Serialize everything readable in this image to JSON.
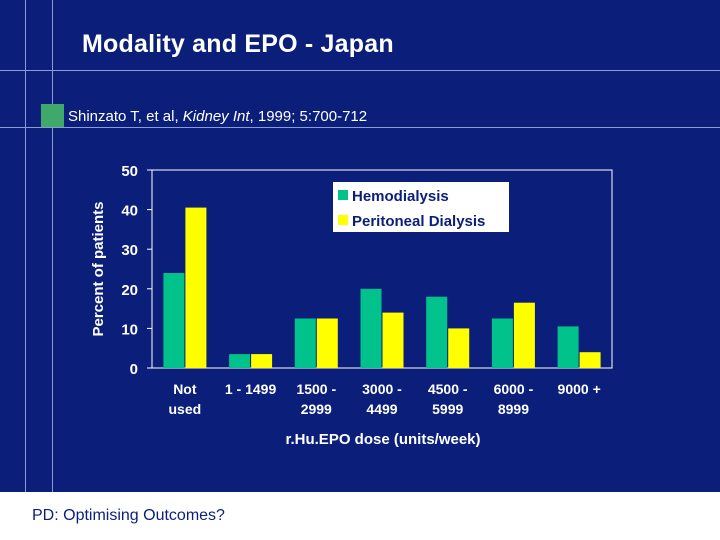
{
  "slide": {
    "title": "Modality and EPO - Japan",
    "citation_prefix": "Shinzato T, et al, ",
    "citation_journal": "Kidney Int",
    "citation_suffix": ", 1999; 5:700-712",
    "footer": "PD: Optimising Outcomes?"
  },
  "colors": {
    "background": "#0b1f7a",
    "hemodialysis": "#00c28a",
    "peritoneal": "#ffff00",
    "accent": "#3fa86b"
  },
  "chart_data": {
    "type": "bar",
    "title": "",
    "xlabel": "r.Hu.EPO dose (units/week)",
    "ylabel": "Percent of patients",
    "ylim": [
      0,
      50
    ],
    "yticks": [
      "0",
      "10",
      "20",
      "30",
      "40",
      "50"
    ],
    "categories": [
      [
        "Not",
        "used"
      ],
      [
        "1 - 1499"
      ],
      [
        "1500 -",
        "2999"
      ],
      [
        "3000 -",
        "4499"
      ],
      [
        "4500 -",
        "5999"
      ],
      [
        "6000 -",
        "8999"
      ],
      [
        "9000 +"
      ]
    ],
    "series": [
      {
        "name": "Hemodialysis",
        "color": "#00c28a",
        "values": [
          24,
          3.5,
          12.5,
          20,
          18,
          12.5,
          10.5
        ]
      },
      {
        "name": "Peritoneal Dialysis",
        "color": "#ffff00",
        "values": [
          40.5,
          3.5,
          12.5,
          14,
          10,
          16.5,
          4
        ]
      }
    ],
    "legend_position": "top-right",
    "grid": false
  }
}
